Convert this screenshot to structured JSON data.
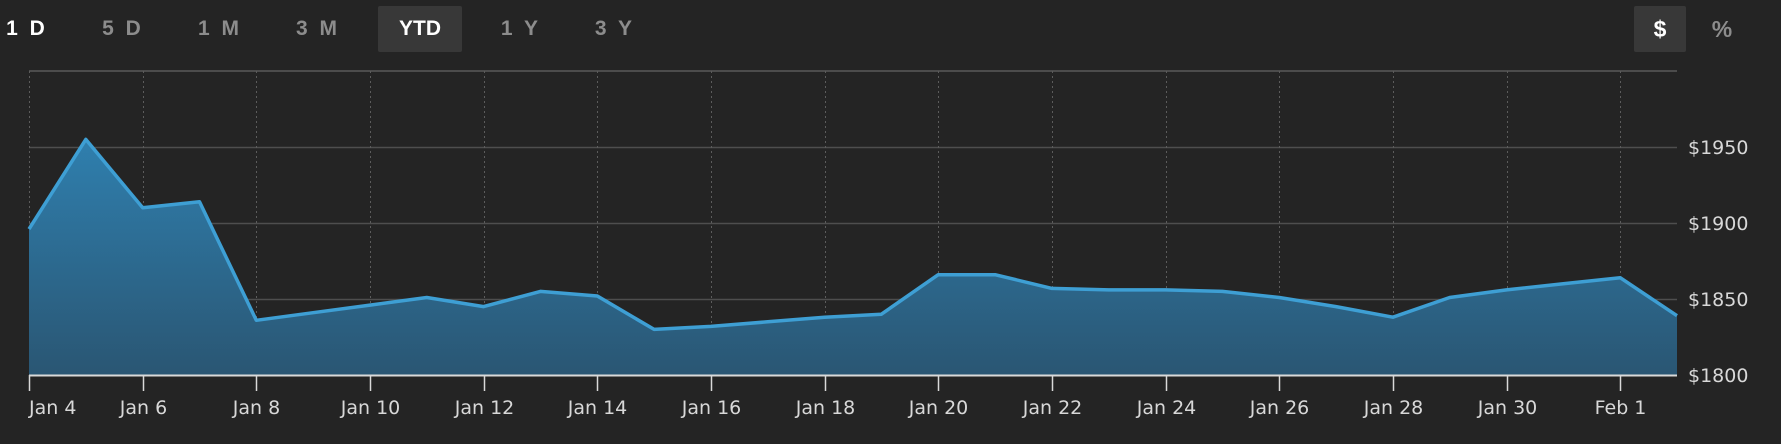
{
  "range_selector": {
    "options": [
      {
        "label": "1 D",
        "state": "bright"
      },
      {
        "label": "5 D",
        "state": "normal"
      },
      {
        "label": "1 M",
        "state": "normal"
      },
      {
        "label": "3 M",
        "state": "normal"
      },
      {
        "label": "YTD",
        "state": "selected"
      },
      {
        "label": "1 Y",
        "state": "normal"
      },
      {
        "label": "3 Y",
        "state": "normal"
      }
    ]
  },
  "unit_toggle": {
    "dollar_label": "$",
    "percent_label": "%",
    "selected": "$"
  },
  "colors": {
    "background": "#242424",
    "line": "#3e9fd4",
    "area_top": "#2f7fae",
    "area_bottom": "#2a5673",
    "grid": "#555555",
    "baseline": "#d9d9d9"
  },
  "chart_data": {
    "type": "area",
    "title": "",
    "xlabel": "",
    "ylabel": "",
    "x": [
      "Jan 4",
      "Jan 5",
      "Jan 6",
      "Jan 7",
      "Jan 8",
      "Jan 9",
      "Jan 10",
      "Jan 11",
      "Jan 12",
      "Jan 13",
      "Jan 14",
      "Jan 15",
      "Jan 16",
      "Jan 17",
      "Jan 18",
      "Jan 19",
      "Jan 20",
      "Jan 21",
      "Jan 22",
      "Jan 23",
      "Jan 24",
      "Jan 25",
      "Jan 26",
      "Jan 27",
      "Jan 28",
      "Jan 29",
      "Jan 30",
      "Jan 31",
      "Feb 1",
      "Feb 2"
    ],
    "series": [
      {
        "values": [
          1896,
          1955,
          1910,
          1914,
          1836,
          1841,
          1846,
          1851,
          1845,
          1855,
          1852,
          1830,
          1832,
          1835,
          1838,
          1840,
          1866,
          1866,
          1857,
          1856,
          1856,
          1855,
          1851,
          1845,
          1838,
          1851,
          1856,
          1860,
          1864,
          1839
        ]
      }
    ],
    "x_tick_labels": [
      "Jan 4",
      "Jan 6",
      "Jan 8",
      "Jan 10",
      "Jan 12",
      "Jan 14",
      "Jan 16",
      "Jan 18",
      "Jan 20",
      "Jan 22",
      "Jan 24",
      "Jan 26",
      "Jan 28",
      "Jan 30",
      "Feb 1"
    ],
    "y_tick_labels": [
      "$1800",
      "$1850",
      "$1900",
      "$1950"
    ],
    "y_ticks": [
      1800,
      1850,
      1900,
      1950
    ],
    "ylim": [
      1800,
      2000
    ],
    "grid": true,
    "vertical_grid_style": "dotted",
    "horizontal_grid_style": "solid",
    "y_axis_position": "right"
  }
}
